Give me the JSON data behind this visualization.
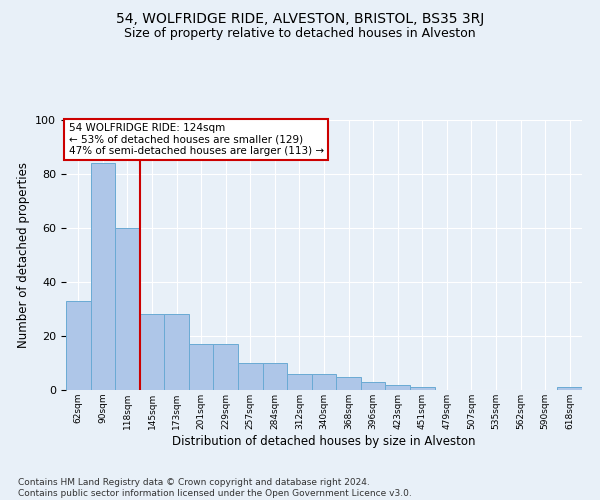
{
  "title1": "54, WOLFRIDGE RIDE, ALVESTON, BRISTOL, BS35 3RJ",
  "title2": "Size of property relative to detached houses in Alveston",
  "xlabel": "Distribution of detached houses by size in Alveston",
  "ylabel": "Number of detached properties",
  "footnote": "Contains HM Land Registry data © Crown copyright and database right 2024.\nContains public sector information licensed under the Open Government Licence v3.0.",
  "bin_labels": [
    "62sqm",
    "90sqm",
    "118sqm",
    "145sqm",
    "173sqm",
    "201sqm",
    "229sqm",
    "257sqm",
    "284sqm",
    "312sqm",
    "340sqm",
    "368sqm",
    "396sqm",
    "423sqm",
    "451sqm",
    "479sqm",
    "507sqm",
    "535sqm",
    "562sqm",
    "590sqm",
    "618sqm"
  ],
  "bar_values": [
    33,
    84,
    60,
    28,
    28,
    17,
    17,
    10,
    10,
    6,
    6,
    5,
    3,
    2,
    1,
    0,
    0,
    0,
    0,
    0,
    1
  ],
  "bar_color": "#aec6e8",
  "bar_edge_color": "#6aaad4",
  "red_line_x": 2,
  "annotation_text": "54 WOLFRIDGE RIDE: 124sqm\n← 53% of detached houses are smaller (129)\n47% of semi-detached houses are larger (113) →",
  "annotation_box_color": "#ffffff",
  "annotation_box_edge": "#cc0000",
  "red_line_color": "#cc0000",
  "ylim": [
    0,
    100
  ],
  "background_color": "#e8f0f8",
  "grid_color": "#ffffff",
  "title1_fontsize": 10,
  "title2_fontsize": 9,
  "xlabel_fontsize": 8.5,
  "ylabel_fontsize": 8.5,
  "footnote_fontsize": 6.5
}
